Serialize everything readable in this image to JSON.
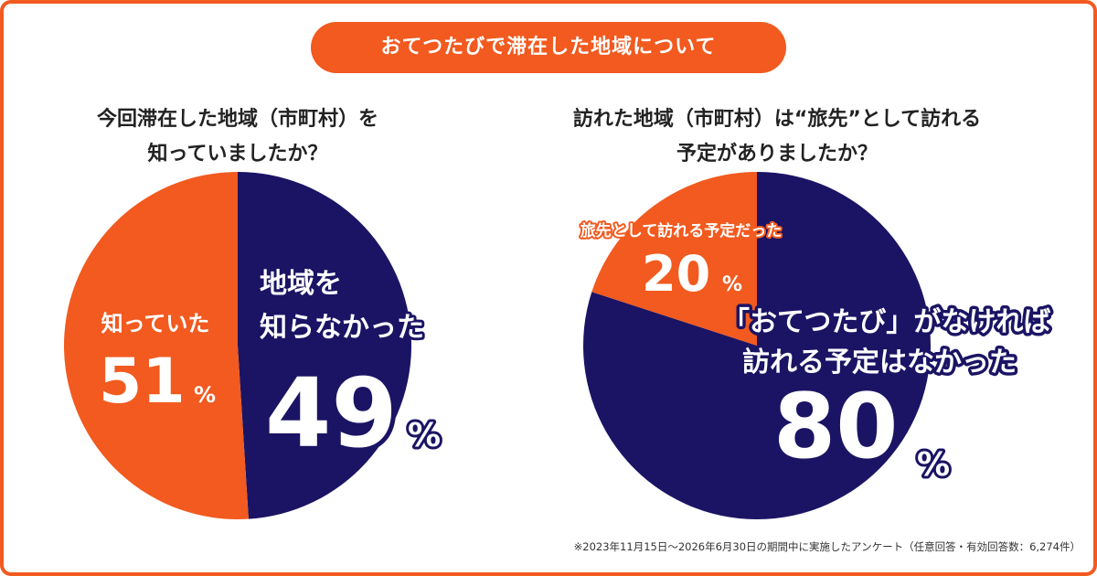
{
  "header": {
    "title": "おてつたびで滞在した地域について"
  },
  "colors": {
    "orange": "#f25a1f",
    "navy": "#1b1464",
    "white": "#ffffff"
  },
  "footnote": "※2023年11月15日〜2026年6月30日の期間中に実施したアンケート（任意回答・有効回答数：6,274件）",
  "chart_data": [
    {
      "type": "pie",
      "title_lines": [
        "今回滞在した地域（市町村）を",
        "知っていましたか？"
      ],
      "slices": [
        {
          "label_lines": [
            "地域を",
            "知らなかった"
          ],
          "value": 49,
          "value_text": "49",
          "unit": "%",
          "color": "#1b1464"
        },
        {
          "label_lines": [
            "知っていた"
          ],
          "value": 51,
          "value_text": "51",
          "unit": "%",
          "color": "#f25a1f"
        }
      ]
    },
    {
      "type": "pie",
      "title_lines": [
        "訪れた地域（市町村）は“旅先”として訪れる",
        "予定がありましたか？"
      ],
      "slices": [
        {
          "label_lines": [
            "「おてつたび」がなければ",
            "訪れる予定はなかった"
          ],
          "value": 80,
          "value_text": "80",
          "unit": "%",
          "color": "#1b1464"
        },
        {
          "label_lines": [
            "旅先として訪れる予定だった"
          ],
          "value": 20,
          "value_text": "20",
          "unit": "%",
          "color": "#f25a1f"
        }
      ]
    }
  ]
}
